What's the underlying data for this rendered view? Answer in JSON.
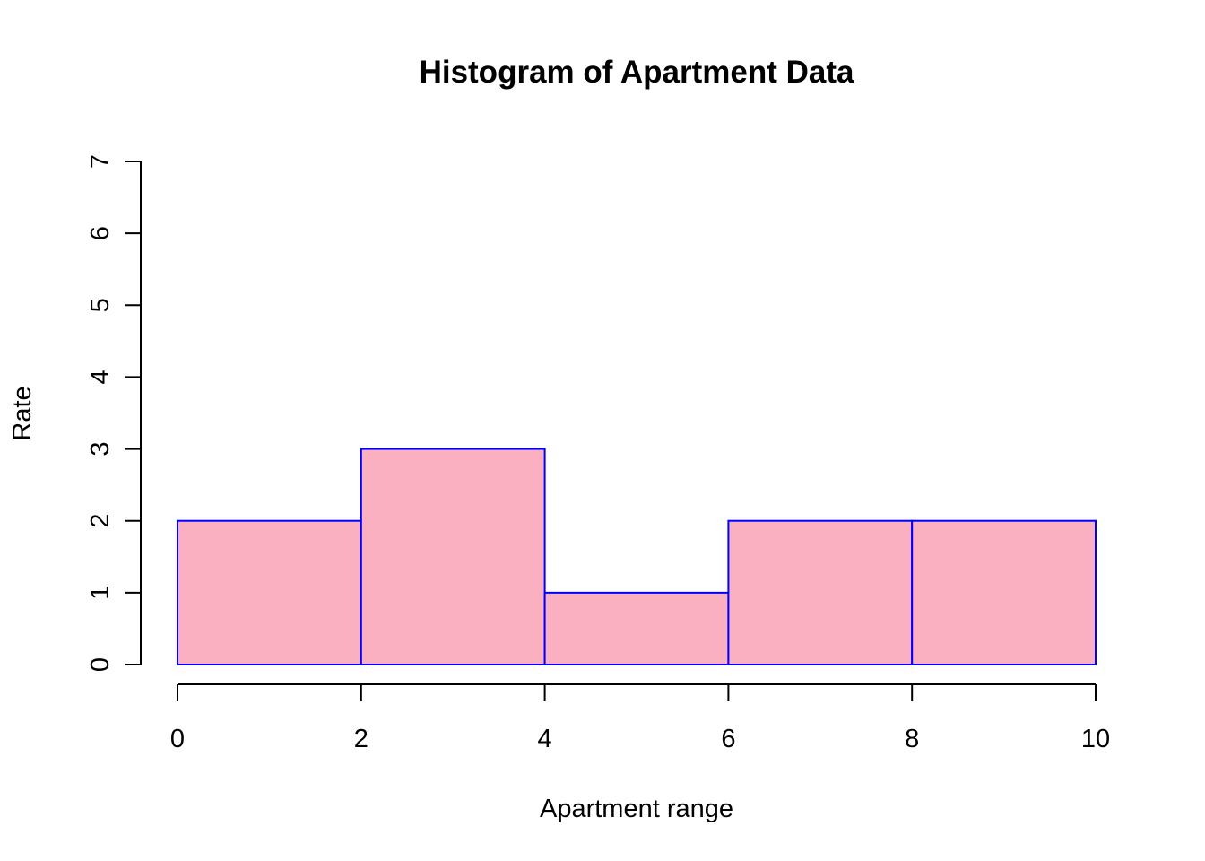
{
  "chart_data": {
    "type": "bar",
    "title": "Histogram of Apartment Data",
    "xlabel": "Apartment range",
    "ylabel": "Rate",
    "bins": [
      {
        "start": 0,
        "end": 2,
        "value": 2
      },
      {
        "start": 2,
        "end": 4,
        "value": 3
      },
      {
        "start": 4,
        "end": 6,
        "value": 1
      },
      {
        "start": 6,
        "end": 8,
        "value": 2
      },
      {
        "start": 8,
        "end": 10,
        "value": 2
      }
    ],
    "xlim": [
      0,
      10
    ],
    "ylim": [
      0,
      7
    ],
    "xticks": [
      "0",
      "2",
      "4",
      "6",
      "8",
      "10"
    ],
    "yticks": [
      "0",
      "1",
      "2",
      "3",
      "4",
      "5",
      "6",
      "7"
    ],
    "bar_fill": "#FBB0C1",
    "bar_stroke": "#0000FF",
    "grid": false
  }
}
